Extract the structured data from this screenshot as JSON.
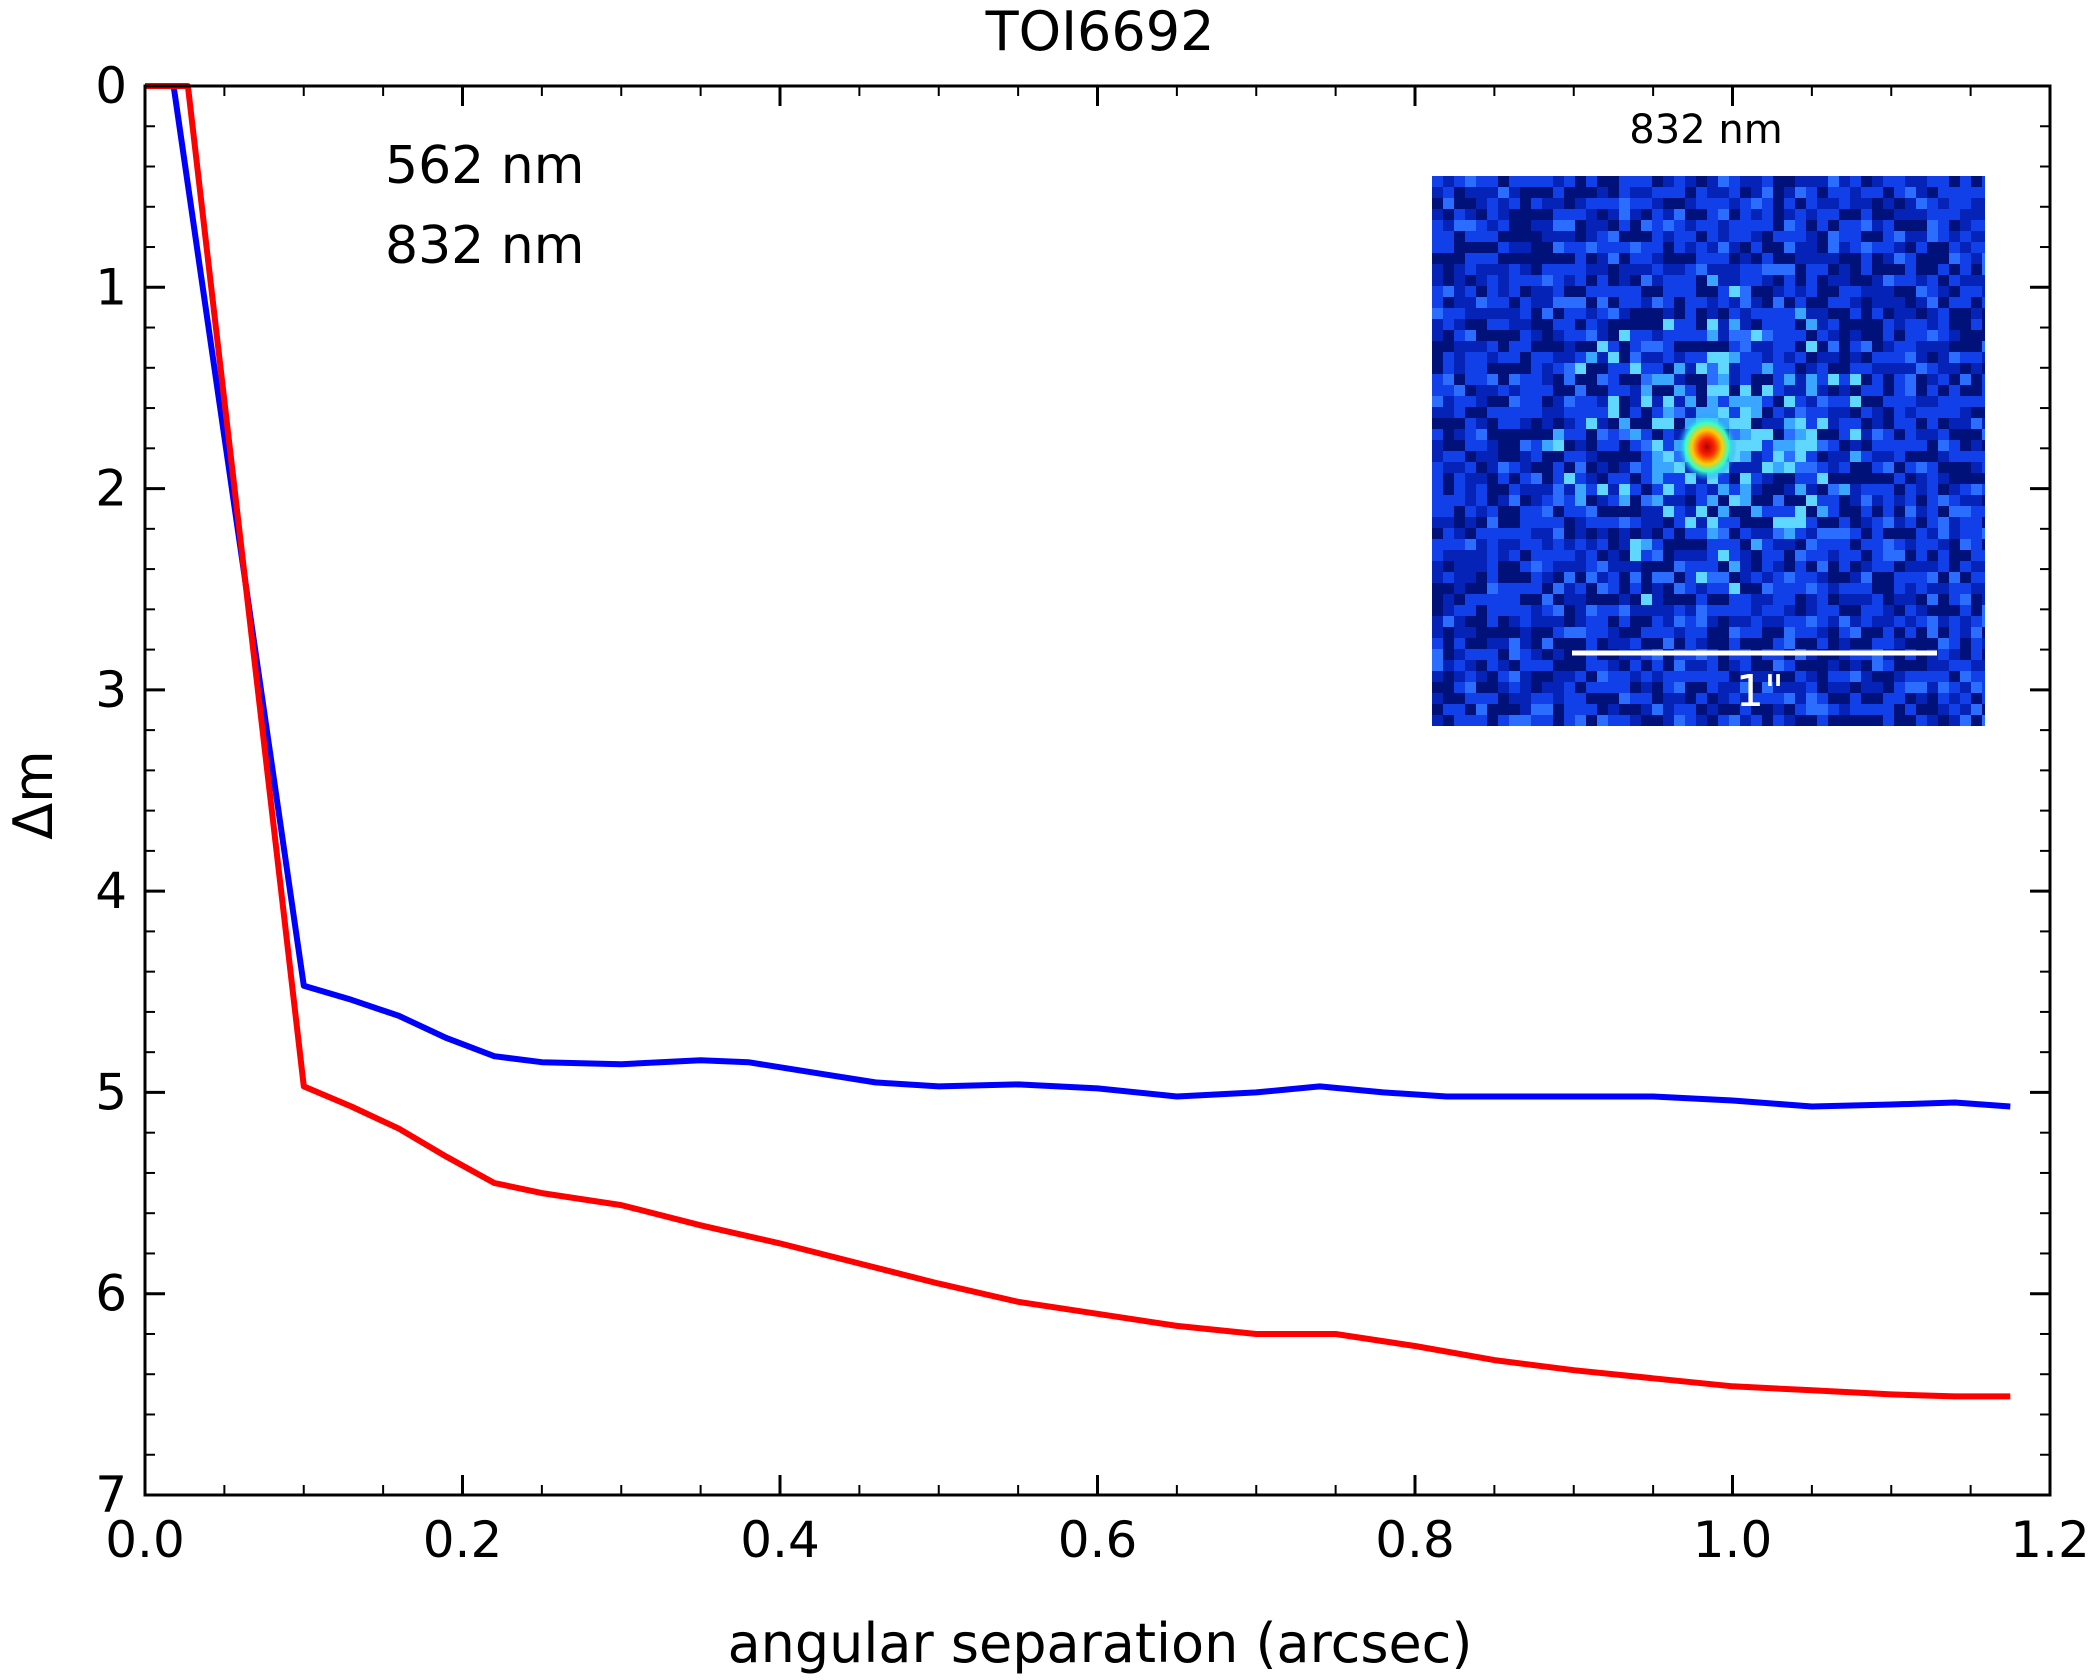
{
  "chart_data": {
    "type": "line",
    "title": "TOI6692",
    "xlabel": "angular separation (arcsec)",
    "ylabel": "Δm",
    "xlim": [
      0.0,
      1.2
    ],
    "ylim": [
      7,
      0
    ],
    "y_inverted": true,
    "xticks": [
      0.0,
      0.2,
      0.4,
      0.6,
      0.8,
      1.0,
      1.2
    ],
    "xtick_labels": [
      "0.0",
      "0.2",
      "0.4",
      "0.6",
      "0.8",
      "1.0",
      "1.2"
    ],
    "yticks": [
      0,
      1,
      2,
      3,
      4,
      5,
      6,
      7
    ],
    "ytick_labels": [
      "0",
      "1",
      "2",
      "3",
      "4",
      "5",
      "6",
      "7"
    ],
    "legend_position": "top-left",
    "series": [
      {
        "name": "562 nm",
        "color": "#0000ff",
        "x": [
          0.0,
          0.018,
          0.1,
          0.13,
          0.16,
          0.19,
          0.22,
          0.25,
          0.3,
          0.35,
          0.38,
          0.42,
          0.46,
          0.5,
          0.55,
          0.6,
          0.65,
          0.7,
          0.74,
          0.78,
          0.82,
          0.86,
          0.9,
          0.95,
          1.0,
          1.05,
          1.1,
          1.14,
          1.175
        ],
        "y": [
          0.0,
          0.0,
          4.47,
          4.54,
          4.62,
          4.73,
          4.82,
          4.85,
          4.86,
          4.84,
          4.85,
          4.9,
          4.95,
          4.97,
          4.96,
          4.98,
          5.02,
          5.0,
          4.97,
          5.0,
          5.02,
          5.02,
          5.02,
          5.02,
          5.04,
          5.07,
          5.06,
          5.05,
          5.07
        ]
      },
      {
        "name": "832 nm",
        "color": "#ff0000",
        "x": [
          0.0,
          0.027,
          0.1,
          0.13,
          0.16,
          0.19,
          0.22,
          0.25,
          0.3,
          0.35,
          0.4,
          0.45,
          0.5,
          0.55,
          0.6,
          0.65,
          0.7,
          0.75,
          0.8,
          0.85,
          0.9,
          0.95,
          1.0,
          1.05,
          1.1,
          1.14,
          1.175
        ],
        "y": [
          0.0,
          0.0,
          4.97,
          5.07,
          5.18,
          5.32,
          5.45,
          5.5,
          5.56,
          5.66,
          5.75,
          5.85,
          5.95,
          6.04,
          6.1,
          6.16,
          6.2,
          6.2,
          6.26,
          6.33,
          6.38,
          6.42,
          6.46,
          6.48,
          6.5,
          6.51,
          6.51
        ]
      }
    ],
    "inset": {
      "title": "832 nm",
      "scale_bar_label": "1\"",
      "background_color": "#0a2ed8",
      "peak_color": "#ff2200"
    }
  }
}
